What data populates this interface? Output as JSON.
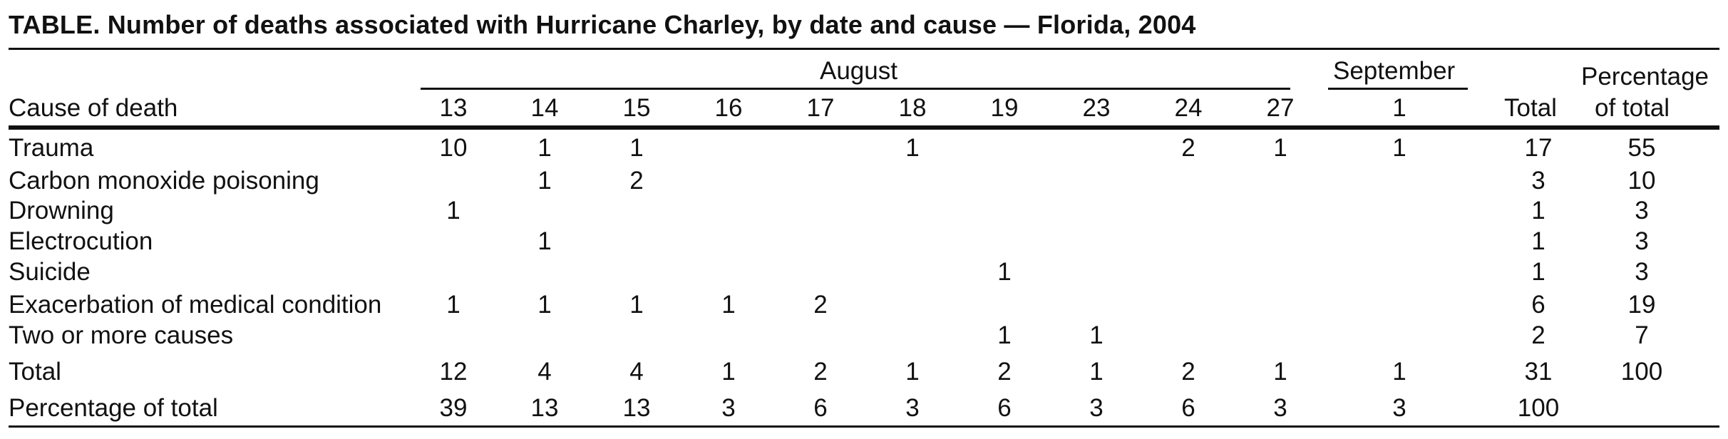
{
  "table": {
    "title": "TABLE. Number of deaths associated with Hurricane Charley, by date and cause — Florida, 2004",
    "row_header": "Cause of death",
    "group_headers": {
      "august": "August",
      "september": "September"
    },
    "columns": [
      "13",
      "14",
      "15",
      "16",
      "17",
      "18",
      "19",
      "23",
      "24",
      "27",
      "1"
    ],
    "total_header": "Total",
    "pct_header_line1": "Percentage",
    "pct_header_line2": "of total",
    "rows": [
      {
        "label": "Trauma",
        "cells": [
          "10",
          "1",
          "1",
          "",
          "",
          "1",
          "",
          "",
          "2",
          "1",
          "1"
        ],
        "total": "17",
        "pct": "55"
      },
      {
        "label": "Carbon monoxide poisoning",
        "cells": [
          "",
          "1",
          "2",
          "",
          "",
          "",
          "",
          "",
          "",
          "",
          ""
        ],
        "total": "3",
        "pct": "10"
      },
      {
        "label": "Drowning",
        "cells": [
          "1",
          "",
          "",
          "",
          "",
          "",
          "",
          "",
          "",
          "",
          ""
        ],
        "total": "1",
        "pct": "3"
      },
      {
        "label": "Electrocution",
        "cells": [
          "",
          "1",
          "",
          "",
          "",
          "",
          "",
          "",
          "",
          "",
          ""
        ],
        "total": "1",
        "pct": "3"
      },
      {
        "label": "Suicide",
        "cells": [
          "",
          "",
          "",
          "",
          "",
          "",
          "1",
          "",
          "",
          "",
          ""
        ],
        "total": "1",
        "pct": "3"
      },
      {
        "label": "Exacerbation of medical condition",
        "cells": [
          "1",
          "1",
          "1",
          "1",
          "2",
          "",
          "",
          "",
          "",
          "",
          ""
        ],
        "total": "6",
        "pct": "19"
      },
      {
        "label": "Two or more causes",
        "cells": [
          "",
          "",
          "",
          "",
          "",
          "",
          "1",
          "1",
          "",
          "",
          ""
        ],
        "total": "2",
        "pct": "7"
      },
      {
        "label": "Total",
        "cells": [
          "12",
          "4",
          "4",
          "1",
          "2",
          "1",
          "2",
          "1",
          "2",
          "1",
          "1"
        ],
        "total": "31",
        "pct": "100"
      },
      {
        "label": "Percentage of total",
        "cells": [
          "39",
          "13",
          "13",
          "3",
          "6",
          "3",
          "6",
          "3",
          "6",
          "3",
          "3"
        ],
        "total": "100",
        "pct": ""
      }
    ]
  }
}
